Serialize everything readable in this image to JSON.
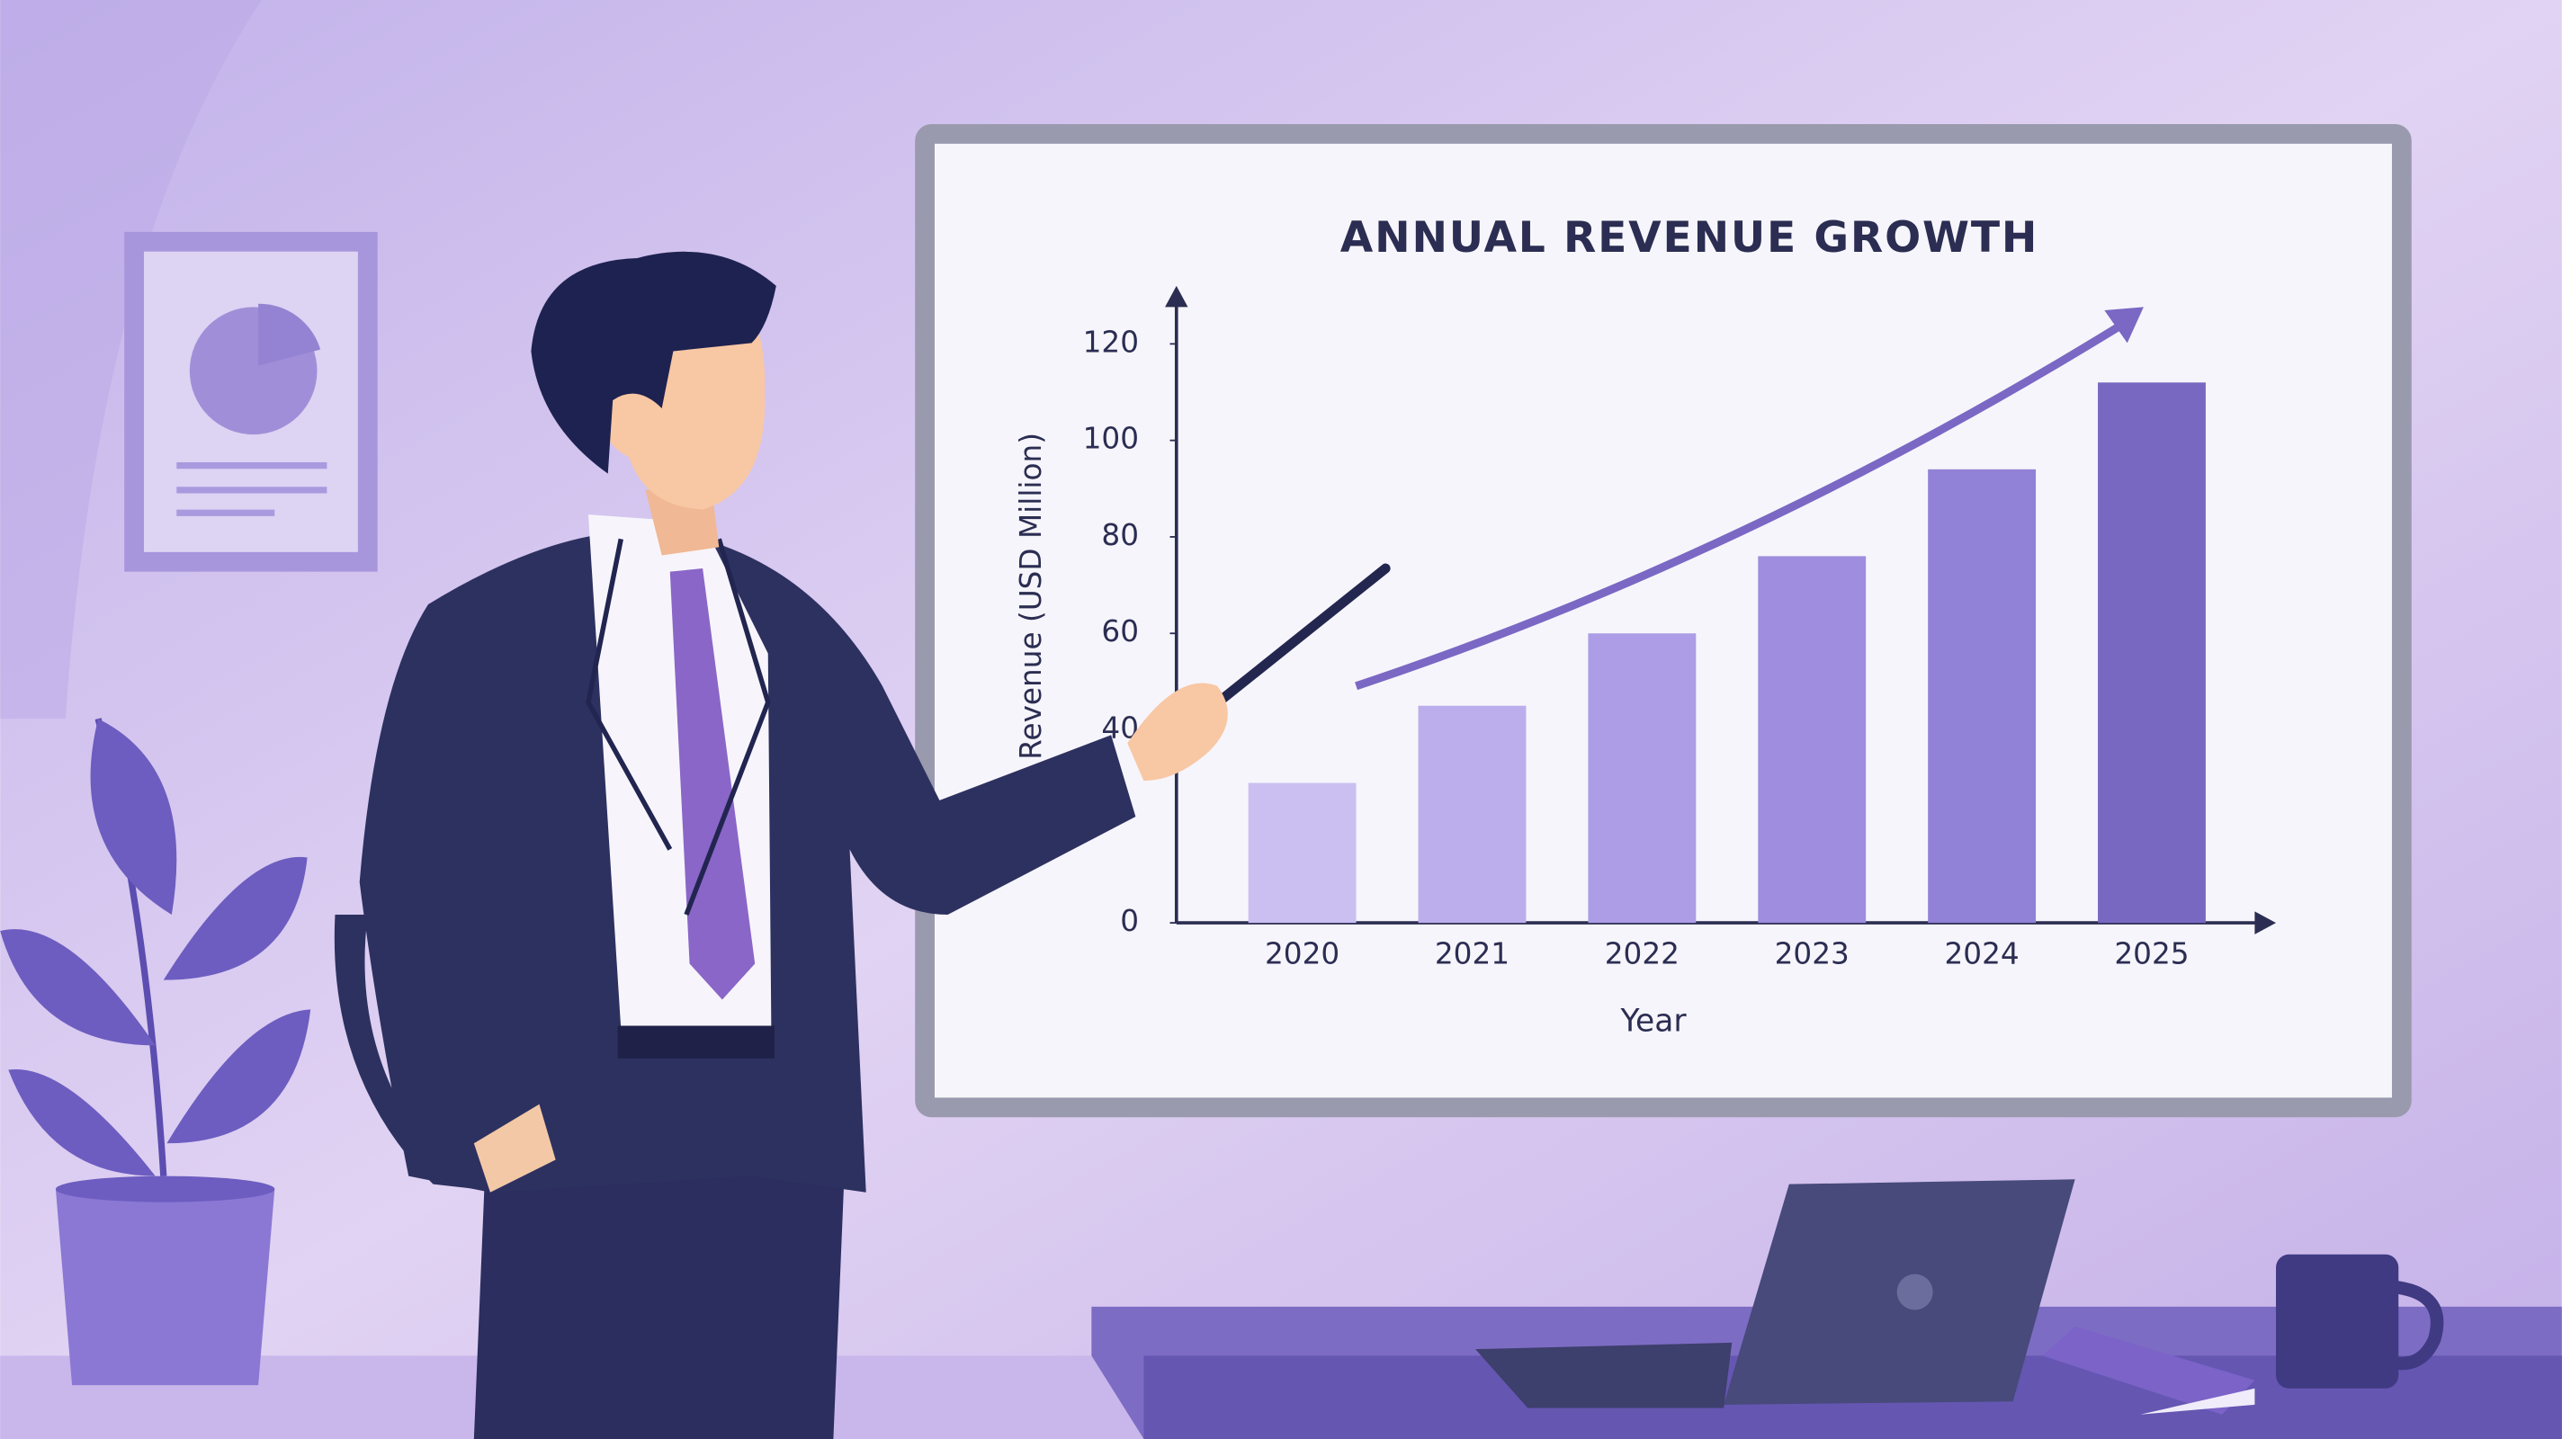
{
  "chart_data": {
    "type": "bar",
    "title": "ANNUAL REVENUE GROWTH",
    "x_label": "Year",
    "y_label": "Revenue (USD Million)",
    "categories": [
      "2020",
      "2021",
      "2022",
      "2023",
      "2024",
      "2025"
    ],
    "values": [
      29,
      45,
      60,
      76,
      94,
      112
    ],
    "colors": [
      "#cbbff2",
      "#bcaeec",
      "#ad9de6",
      "#9f8ddf",
      "#9181d7",
      "#7868c2"
    ],
    "ylim": [
      0,
      130
    ],
    "yticks": [
      0,
      40,
      60,
      80,
      100,
      120
    ]
  }
}
